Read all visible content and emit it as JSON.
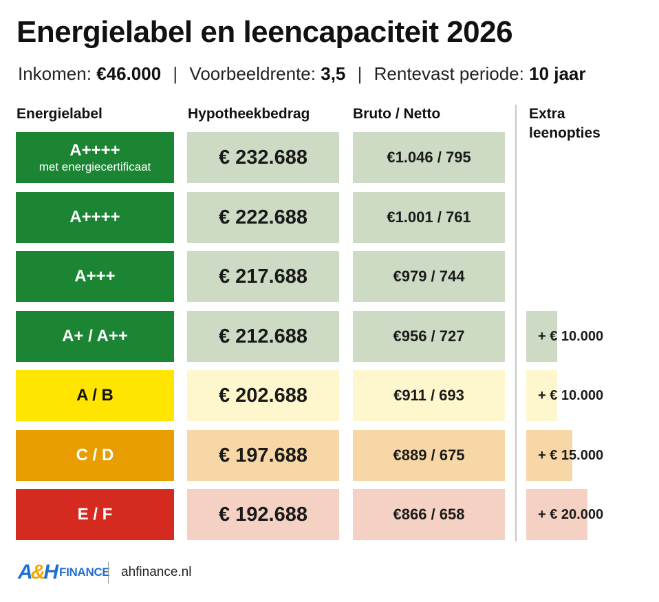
{
  "title": "Energielabel en leencapaciteit 2026",
  "subtitle": {
    "inkomen_label": "Inkomen:",
    "inkomen_value": "€46.000",
    "rente_label": "Voorbeeldrente:",
    "rente_value": "3,5",
    "periode_label": "Rentevast periode:",
    "periode_value": "10 jaar",
    "separator": "|"
  },
  "columns": {
    "label": "Energielabel",
    "amount": "Hypotheekbedrag",
    "gross_net": "Bruto / Netto",
    "extra_line1": "Extra",
    "extra_line2": "leenopties"
  },
  "colors": {
    "dark_green": "#1c8534",
    "yellow": "#ffe500",
    "orange": "#e89d00",
    "red": "#d42a20",
    "tint_green": "#cddbc4",
    "tint_yellow": "#fef6cd",
    "tint_orange": "#f8d7a7",
    "tint_red": "#f4d1c2"
  },
  "chart_data": {
    "type": "table",
    "title": "Energielabel en leencapaciteit 2026",
    "columns": [
      "Energielabel",
      "Hypotheekbedrag",
      "Bruto / Netto",
      "Extra leenopties"
    ],
    "extra_max": 20000,
    "rows": [
      {
        "label": "A++++",
        "sublabel": "met energiecertificaat",
        "amount": "€ 232.688",
        "gross_net": "€1.046 / 795",
        "extra": "",
        "extra_value": 0,
        "label_color": "#1c8534",
        "label_text_color": "#ffffff",
        "tint": "#cddbc4"
      },
      {
        "label": "A++++",
        "sublabel": "",
        "amount": "€ 222.688",
        "gross_net": "€1.001 / 761",
        "extra": "",
        "extra_value": 0,
        "label_color": "#1c8534",
        "label_text_color": "#ffffff",
        "tint": "#cddbc4"
      },
      {
        "label": "A+++",
        "sublabel": "",
        "amount": "€ 217.688",
        "gross_net": "€979 / 744",
        "extra": "",
        "extra_value": 0,
        "label_color": "#1c8534",
        "label_text_color": "#ffffff",
        "tint": "#cddbc4"
      },
      {
        "label": "A+ / A++",
        "sublabel": "",
        "amount": "€ 212.688",
        "gross_net": "€956 / 727",
        "extra": "+ € 10.000",
        "extra_value": 10000,
        "label_color": "#1c8534",
        "label_text_color": "#ffffff",
        "tint": "#cddbc4"
      },
      {
        "label": "A / B",
        "sublabel": "",
        "amount": "€ 202.688",
        "gross_net": "€911 / 693",
        "extra": "+ € 10.000",
        "extra_value": 10000,
        "label_color": "#ffe500",
        "label_text_color": "#111111",
        "tint": "#fef6cd"
      },
      {
        "label": "C / D",
        "sublabel": "",
        "amount": "€ 197.688",
        "gross_net": "€889 / 675",
        "extra": "+ € 15.000",
        "extra_value": 15000,
        "label_color": "#e89d00",
        "label_text_color": "#ffffff",
        "tint": "#f8d7a7"
      },
      {
        "label": "E / F",
        "sublabel": "",
        "amount": "€ 192.688",
        "gross_net": "€866 / 658",
        "extra": "+ € 20.000",
        "extra_value": 20000,
        "label_color": "#d42a20",
        "label_text_color": "#ffffff",
        "tint": "#f4d1c2"
      }
    ]
  },
  "footer": {
    "logo_a": "A",
    "logo_amp": "&",
    "logo_h": "H",
    "logo_finance": "FINANCE",
    "url": "ahfinance.nl"
  }
}
